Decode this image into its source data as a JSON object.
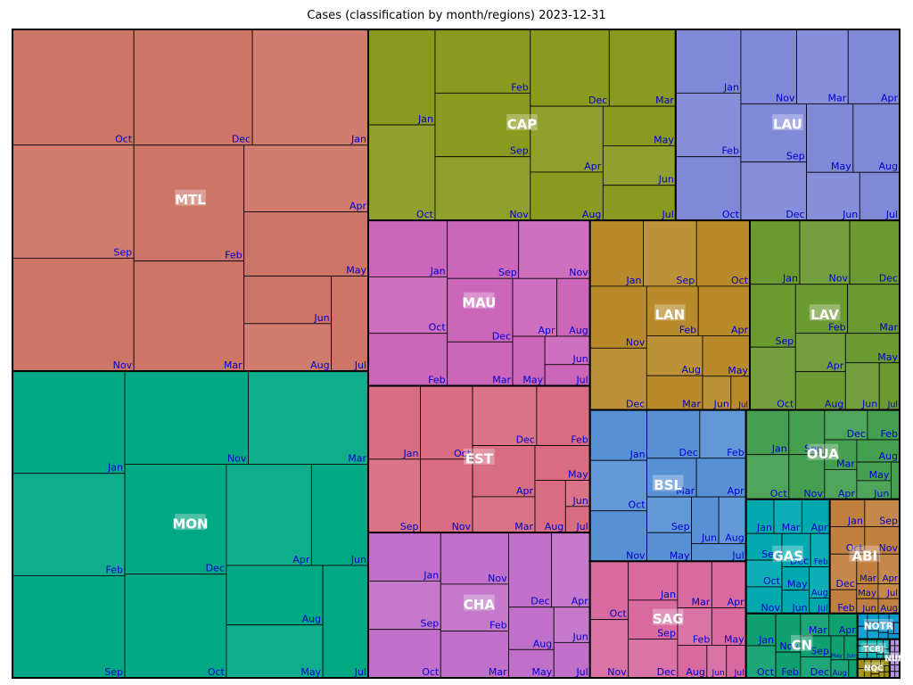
{
  "chart_data": {
    "type": "treemap",
    "title": "Cases (classification by month/regions)  2023-12-31",
    "months": [
      "Jan",
      "Feb",
      "Mar",
      "Apr",
      "May",
      "Jun",
      "Jul",
      "Aug",
      "Sep",
      "Oct",
      "Nov",
      "Dec"
    ],
    "regions": [
      {
        "name": "MTL",
        "color": "#cd7567",
        "months": {
          "Jan": 4.2,
          "Feb": 4.0,
          "Mar": 3.8,
          "Apr": 2.6,
          "May": 2.5,
          "Jun": 1.3,
          "Jul": 1.1,
          "Aug": 1.3,
          "Sep": 4.3,
          "Oct": 4.4,
          "Nov": 4.3,
          "Dec": 4.3
        }
      },
      {
        "name": "MON",
        "color": "#00a884",
        "months": {
          "Jan": 3.6,
          "Feb": 3.6,
          "Mar": 3.5,
          "Apr": 2.7,
          "May": 1.6,
          "Jun": 1.8,
          "Jul": 1.6,
          "Aug": 1.8,
          "Sep": 3.6,
          "Oct": 3.3,
          "Nov": 3.6,
          "Dec": 3.5
        }
      },
      {
        "name": "CAP",
        "color": "#8a9a1e",
        "months": {
          "Jan": 2.0,
          "Feb": 1.9,
          "Mar": 1.6,
          "Apr": 1.5,
          "May": 0.9,
          "Jun": 0.9,
          "Jul": 0.8,
          "Aug": 1.1,
          "Sep": 1.9,
          "Oct": 2.0,
          "Nov": 1.9,
          "Dec": 1.9
        }
      },
      {
        "name": "LAU",
        "color": "#8088d8",
        "months": {
          "Jan": 1.3,
          "Feb": 1.3,
          "Mar": 1.2,
          "Apr": 1.2,
          "May": 1.0,
          "Jun": 0.8,
          "Jul": 0.6,
          "Aug": 1.0,
          "Sep": 1.2,
          "Oct": 1.3,
          "Nov": 1.3,
          "Dec": 1.2
        }
      },
      {
        "name": "MAU",
        "color": "#cc66bb",
        "months": {
          "Jan": 1.4,
          "Feb": 1.3,
          "Mar": 0.9,
          "Apr": 0.8,
          "May": 0.5,
          "Jun": 0.4,
          "Jul": 0.3,
          "Aug": 0.6,
          "Sep": 1.3,
          "Oct": 1.4,
          "Nov": 1.3,
          "Dec": 1.3
        }
      },
      {
        "name": "EST",
        "color": "#d86c80",
        "months": {
          "Jan": 1.2,
          "Feb": 1.0,
          "Mar": 0.7,
          "Apr": 1.0,
          "May": 0.6,
          "Jun": 0.2,
          "Jul": 0.2,
          "Aug": 0.5,
          "Sep": 1.2,
          "Oct": 1.2,
          "Nov": 1.2,
          "Dec": 1.2
        }
      },
      {
        "name": "CHA",
        "color": "#c070c8",
        "months": {
          "Jan": 1.1,
          "Feb": 1.0,
          "Mar": 1.0,
          "Apr": 0.9,
          "May": 0.4,
          "Jun": 0.4,
          "Jul": 0.4,
          "Aug": 0.6,
          "Sep": 1.1,
          "Oct": 1.1,
          "Nov": 1.1,
          "Dec": 1.0
        }
      },
      {
        "name": "LAN",
        "color": "#b88a2a",
        "months": {
          "Jan": 1.1,
          "Feb": 0.8,
          "Mar": 0.6,
          "Apr": 0.8,
          "May": 0.6,
          "Jun": 0.3,
          "Jul": 0.2,
          "Aug": 0.7,
          "Sep": 1.1,
          "Oct": 1.1,
          "Nov": 1.1,
          "Dec": 1.1
        }
      },
      {
        "name": "LAV",
        "color": "#6a9a30",
        "months": {
          "Jan": 1.0,
          "Feb": 0.8,
          "Mar": 0.8,
          "Apr": 0.6,
          "May": 0.5,
          "Jun": 0.5,
          "Jul": 0.3,
          "Aug": 0.6,
          "Sep": 0.9,
          "Oct": 0.9,
          "Nov": 1.0,
          "Dec": 1.0
        }
      },
      {
        "name": "BSL",
        "color": "#5890d6",
        "months": {
          "Jan": 0.9,
          "Feb": 0.7,
          "Mar": 0.6,
          "Apr": 0.6,
          "May": 0.4,
          "Jun": 0.4,
          "Jul": 0.3,
          "Aug": 0.4,
          "Sep": 0.5,
          "Oct": 0.9,
          "Nov": 0.9,
          "Dec": 0.8
        }
      },
      {
        "name": "SAG",
        "color": "#d86aa0",
        "months": {
          "Jan": 0.6,
          "Feb": 0.4,
          "Mar": 0.5,
          "Apr": 0.5,
          "May": 0.4,
          "Jun": 0.2,
          "Jul": 0.2,
          "Aug": 0.3,
          "Sep": 0.6,
          "Oct": 0.7,
          "Nov": 0.7,
          "Dec": 0.6
        }
      },
      {
        "name": "OUA",
        "color": "#44a050",
        "months": {
          "Jan": 0.6,
          "Feb": 0.3,
          "Mar": 0.3,
          "Apr": 0.3,
          "May": 0.2,
          "Jun": 0.2,
          "Jul": 0.1,
          "Aug": 0.3,
          "Sep": 0.5,
          "Oct": 0.6,
          "Nov": 0.5,
          "Dec": 0.4
        }
      },
      {
        "name": "ABI",
        "color": "#c08040",
        "months": {
          "Jan": 0.3,
          "Feb": 0.2,
          "Mar": 0.2,
          "Apr": 0.2,
          "May": 0.1,
          "Jun": 0.1,
          "Jul": 0.1,
          "Aug": 0.1,
          "Sep": 0.3,
          "Oct": 0.3,
          "Nov": 0.3,
          "Dec": 0.3
        }
      },
      {
        "name": "GAS",
        "color": "#00a8b0",
        "months": {
          "Jan": 0.3,
          "Feb": 0.2,
          "Mar": 0.3,
          "Apr": 0.3,
          "May": 0.2,
          "Jun": 0.2,
          "Jul": 0.1,
          "Aug": 0.2,
          "Sep": 0.3,
          "Oct": 0.3,
          "Nov": 0.3,
          "Dec": 0.3
        }
      },
      {
        "name": "CN",
        "color": "#10a070",
        "months": {
          "Jan": 0.3,
          "Feb": 0.2,
          "Mar": 0.2,
          "Apr": 0.2,
          "May": 0.1,
          "Jun": 0.1,
          "Jul": 0.05,
          "Aug": 0.1,
          "Sep": 0.2,
          "Oct": 0.3,
          "Nov": 0.3,
          "Dec": 0.2
        }
      },
      {
        "name": "NOTR",
        "color": "#0a9ad0",
        "months": {
          "Jan": 0.04,
          "Feb": 0.03,
          "Mar": 0.03,
          "Apr": 0.03,
          "May": 0.02,
          "Jun": 0.02,
          "Jul": 0.02,
          "Aug": 0.02,
          "Sep": 0.03,
          "Oct": 0.03,
          "Nov": 0.04,
          "Dec": 0.03
        }
      },
      {
        "name": "TCBJ",
        "color": "#10b0b0",
        "months": {
          "Jan": 0.02,
          "Feb": 0.02,
          "Mar": 0.02,
          "Apr": 0.02,
          "May": 0.01,
          "Jun": 0.01,
          "Jul": 0.01,
          "Aug": 0.01,
          "Sep": 0.02,
          "Oct": 0.02,
          "Nov": 0.02,
          "Dec": 0.02
        }
      },
      {
        "name": "NQC",
        "color": "#a09010",
        "months": {
          "Jan": 0.02,
          "Feb": 0.02,
          "Mar": 0.02,
          "Apr": 0.01,
          "May": 0.01,
          "Jun": 0.01,
          "Jul": 0.01,
          "Aug": 0.01,
          "Sep": 0.02,
          "Oct": 0.02,
          "Nov": 0.02,
          "Dec": 0.02
        }
      },
      {
        "name": "NUN",
        "color": "#b090e0",
        "months": {
          "Jan": 0.01,
          "Feb": 0.01,
          "Mar": 0.01,
          "Apr": 0.01,
          "May": 0.01,
          "Jun": 0.01,
          "Jul": 0.01,
          "Aug": 0.01,
          "Sep": 0.01,
          "Oct": 0.01,
          "Nov": 0.01,
          "Dec": 0.01
        }
      }
    ]
  }
}
